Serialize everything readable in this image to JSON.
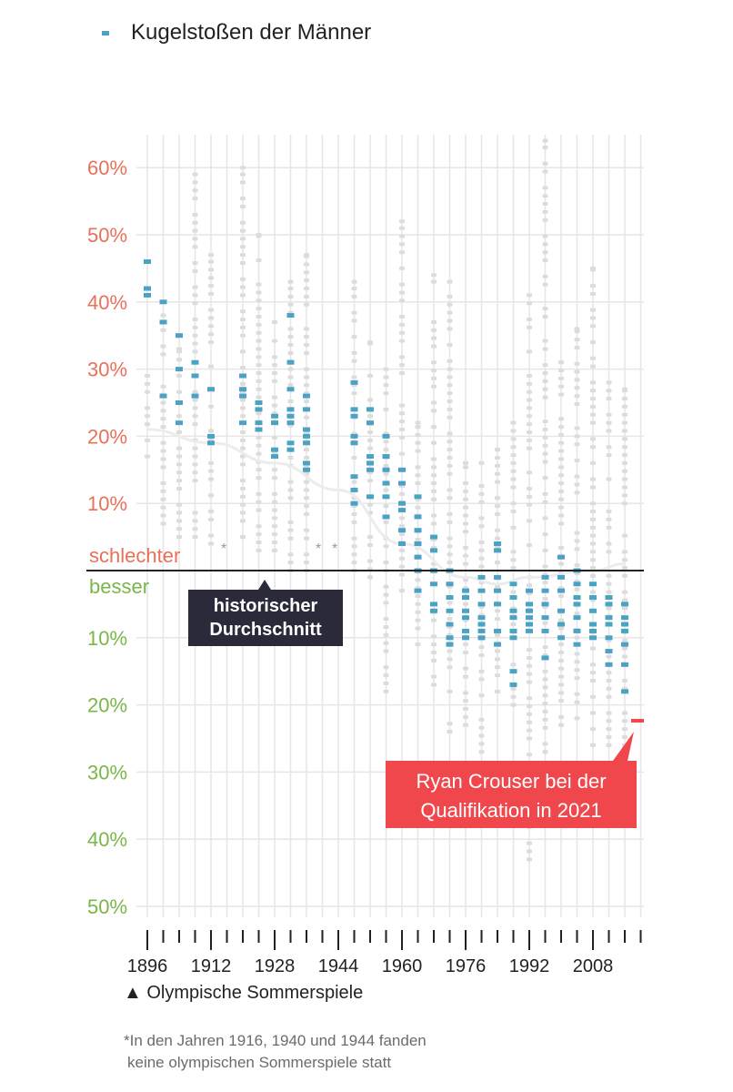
{
  "legend": {
    "label": "Kugelstoßen der Männer",
    "color": "#4ba3c3"
  },
  "annotations": {
    "worse": "schlechter",
    "better": "besser",
    "historical_avg": [
      "historischer",
      "Durchschnitt"
    ],
    "crouser": [
      "Ryan Crouser bei der",
      "Qualifikation in 2021"
    ],
    "asterisk": "*"
  },
  "footer": {
    "axis_note": "▲ Olympische Sommerspiele",
    "footnote_line1": "*In den Jahren 1916, 1940 und 1944 fanden",
    "footnote_line2": "keine olympischen Sommerspiele statt"
  },
  "chart_data": {
    "type": "scatter",
    "x_years": [
      1896,
      1900,
      1904,
      1908,
      1912,
      1916,
      1920,
      1924,
      1928,
      1932,
      1936,
      1940,
      1944,
      1948,
      1952,
      1956,
      1960,
      1964,
      1968,
      1972,
      1976,
      1980,
      1984,
      1988,
      1992,
      1996,
      2000,
      2004,
      2008,
      2012,
      2016,
      2020
    ],
    "x_tick_labels": [
      "1896",
      "1912",
      "1928",
      "1944",
      "1960",
      "1976",
      "1992",
      "2008"
    ],
    "x_tick_years": [
      1896,
      1912,
      1928,
      1944,
      1960,
      1976,
      1992,
      2008
    ],
    "y_tick_labels_worse": [
      "60%",
      "50%",
      "40%",
      "30%",
      "20%",
      "10%"
    ],
    "y_tick_values_worse": [
      60,
      50,
      40,
      30,
      20,
      10
    ],
    "y_tick_labels_better": [
      "10%",
      "20%",
      "30%",
      "40%",
      "50%"
    ],
    "y_tick_values_better": [
      -10,
      -20,
      -30,
      -40,
      -50
    ],
    "ylim": [
      -50,
      60
    ],
    "colors": {
      "worse": "#e8705a",
      "better": "#7ab648",
      "qualifier": "#4ba3c3",
      "crouser": "#f0474c"
    },
    "medalists": [
      {
        "year": 1896,
        "values": [
          46,
          42,
          41
        ]
      },
      {
        "year": 1900,
        "values": [
          40,
          37,
          26
        ]
      },
      {
        "year": 1904,
        "values": [
          35,
          30,
          25,
          22
        ]
      },
      {
        "year": 1908,
        "values": [
          31,
          29,
          26
        ]
      },
      {
        "year": 1912,
        "values": [
          27,
          20,
          19
        ]
      },
      {
        "year": 1920,
        "values": [
          29,
          27,
          26,
          22
        ]
      },
      {
        "year": 1924,
        "values": [
          25,
          24,
          22,
          21
        ]
      },
      {
        "year": 1928,
        "values": [
          23,
          22,
          18,
          17
        ]
      },
      {
        "year": 1932,
        "values": [
          38,
          31,
          27,
          24,
          23,
          22,
          19,
          18
        ]
      },
      {
        "year": 1936,
        "values": [
          26,
          24,
          21,
          20,
          19,
          16,
          15
        ]
      },
      {
        "year": 1948,
        "values": [
          28,
          24,
          23,
          20,
          19,
          14,
          12,
          10
        ]
      },
      {
        "year": 1952,
        "values": [
          24,
          22,
          17,
          16,
          15,
          11
        ]
      },
      {
        "year": 1956,
        "values": [
          20,
          17,
          15,
          13,
          11,
          8
        ]
      },
      {
        "year": 1960,
        "values": [
          15,
          13,
          10,
          9,
          6,
          4
        ]
      },
      {
        "year": 1964,
        "values": [
          11,
          8,
          6,
          4,
          2,
          0,
          -3
        ]
      },
      {
        "year": 1968,
        "values": [
          5,
          3,
          0,
          -2,
          -5,
          -6
        ]
      },
      {
        "year": 1972,
        "values": [
          0,
          -2,
          -4,
          -6,
          -8,
          -10,
          -11
        ]
      },
      {
        "year": 1976,
        "values": [
          -3,
          -4,
          -6,
          -7,
          -9,
          -10
        ]
      },
      {
        "year": 1980,
        "values": [
          -1,
          -3,
          -5,
          -7,
          -8,
          -9,
          -10
        ]
      },
      {
        "year": 1984,
        "values": [
          4,
          3,
          -1,
          -3,
          -5,
          -9,
          -11
        ]
      },
      {
        "year": 1988,
        "values": [
          -2,
          -4,
          -6,
          -7,
          -9,
          -10,
          -15,
          -17
        ]
      },
      {
        "year": 1992,
        "values": [
          -3,
          -5,
          -6,
          -7,
          -8,
          -9
        ]
      },
      {
        "year": 1996,
        "values": [
          -1,
          -3,
          -5,
          -7,
          -9,
          -13
        ]
      },
      {
        "year": 2000,
        "values": [
          2,
          -1,
          -3,
          -6,
          -8,
          -10
        ]
      },
      {
        "year": 2004,
        "values": [
          0,
          -2,
          -4,
          -5,
          -7,
          -9,
          -11
        ]
      },
      {
        "year": 2008,
        "values": [
          -2,
          -4,
          -6,
          -8,
          -9,
          -10
        ]
      },
      {
        "year": 2012,
        "values": [
          -4,
          -5,
          -7,
          -8,
          -10,
          -12,
          -14
        ]
      },
      {
        "year": 2016,
        "values": [
          -5,
          -7,
          -8,
          -9,
          -11,
          -14,
          -18
        ]
      }
    ],
    "field_ranges": [
      {
        "year": 1896,
        "min": 17,
        "max": 29
      },
      {
        "year": 1900,
        "min": 7,
        "max": 38
      },
      {
        "year": 1904,
        "min": 5,
        "max": 33
      },
      {
        "year": 1908,
        "min": 5,
        "max": 59
      },
      {
        "year": 1912,
        "min": 4,
        "max": 47
      },
      {
        "year": 1920,
        "min": 5,
        "max": 60
      },
      {
        "year": 1924,
        "min": 3,
        "max": 50
      },
      {
        "year": 1928,
        "min": 3,
        "max": 37
      },
      {
        "year": 1932,
        "min": 0,
        "max": 43
      },
      {
        "year": 1936,
        "min": 0,
        "max": 47
      },
      {
        "year": 1948,
        "min": 0,
        "max": 43
      },
      {
        "year": 1952,
        "min": -1,
        "max": 34
      },
      {
        "year": 1956,
        "min": -18,
        "max": 30
      },
      {
        "year": 1960,
        "min": -3,
        "max": 52
      },
      {
        "year": 1964,
        "min": -11,
        "max": 22
      },
      {
        "year": 1968,
        "min": -17,
        "max": 44
      },
      {
        "year": 1972,
        "min": -24,
        "max": 43
      },
      {
        "year": 1976,
        "min": -23,
        "max": 16
      },
      {
        "year": 1980,
        "min": -27,
        "max": 16
      },
      {
        "year": 1984,
        "min": -18,
        "max": 18
      },
      {
        "year": 1988,
        "min": -20,
        "max": 22
      },
      {
        "year": 1992,
        "min": -43,
        "max": 41
      },
      {
        "year": 1996,
        "min": -27,
        "max": 64
      },
      {
        "year": 2000,
        "min": -23,
        "max": 31
      },
      {
        "year": 2004,
        "min": -22,
        "max": 36
      },
      {
        "year": 2008,
        "min": -26,
        "max": 45
      },
      {
        "year": 2012,
        "min": -26,
        "max": 28
      },
      {
        "year": 2016,
        "min": -26,
        "max": 27
      }
    ],
    "historical_average": [
      [
        1896,
        21
      ],
      [
        1912,
        19
      ],
      [
        1928,
        16
      ],
      [
        1944,
        12
      ],
      [
        1960,
        4
      ],
      [
        1976,
        -1
      ],
      [
        1984,
        -2
      ],
      [
        1992,
        -1
      ],
      [
        2008,
        0
      ],
      [
        2016,
        1
      ]
    ],
    "crouser_2021": {
      "year": 2021,
      "value": -22
    },
    "no_games_years": [
      1916,
      1940,
      1944
    ]
  }
}
